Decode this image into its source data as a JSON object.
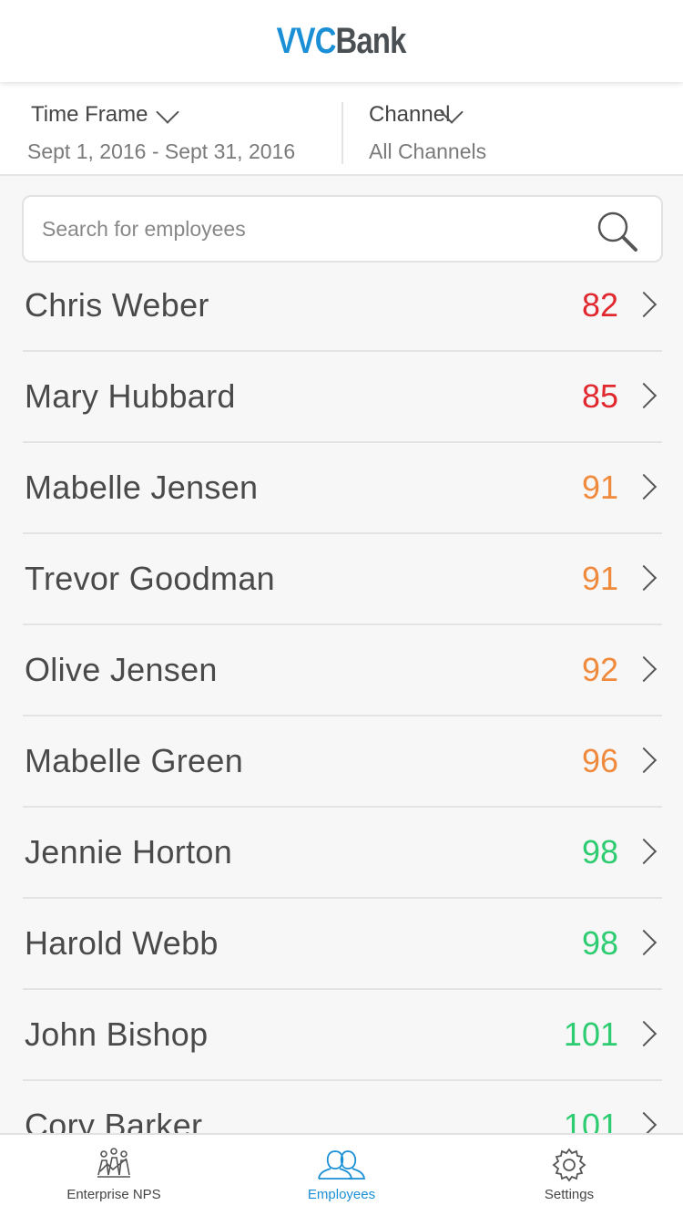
{
  "header": {
    "logo_part1": "VVC",
    "logo_part2": "Bank"
  },
  "filters": {
    "time_frame": {
      "label": "Time Frame",
      "value": "Sept 1, 2016 -  Sept 31, 2016"
    },
    "channel": {
      "label": "Channel",
      "value": "All Channels"
    }
  },
  "search": {
    "placeholder": "Search for employees",
    "value": ""
  },
  "colors": {
    "brand": "#1a8fd6",
    "score_red": "#e0282e",
    "score_orange": "#f08a3c",
    "score_green": "#2ecc71"
  },
  "employees": [
    {
      "name": "Chris Weber",
      "score": "82",
      "color": "#e0282e"
    },
    {
      "name": "Mary Hubbard",
      "score": "85",
      "color": "#e0282e"
    },
    {
      "name": "Mabelle Jensen",
      "score": "91",
      "color": "#f08a3c"
    },
    {
      "name": "Trevor Goodman",
      "score": "91",
      "color": "#f08a3c"
    },
    {
      "name": "Olive Jensen",
      "score": "92",
      "color": "#f08a3c"
    },
    {
      "name": "Mabelle Green",
      "score": "96",
      "color": "#f08a3c"
    },
    {
      "name": "Jennie Horton",
      "score": "98",
      "color": "#2ecc71"
    },
    {
      "name": "Harold Webb",
      "score": "98",
      "color": "#2ecc71"
    },
    {
      "name": "John Bishop",
      "score": "101",
      "color": "#2ecc71"
    },
    {
      "name": "Cory Barker",
      "score": "101",
      "color": "#2ecc71"
    }
  ],
  "tabbar": {
    "tabs": [
      {
        "label": "Enterprise NPS",
        "icon": "enterprise-nps-icon",
        "active": false
      },
      {
        "label": "Employees",
        "icon": "employees-icon",
        "active": true
      },
      {
        "label": "Settings",
        "icon": "gear-icon",
        "active": false
      }
    ]
  }
}
